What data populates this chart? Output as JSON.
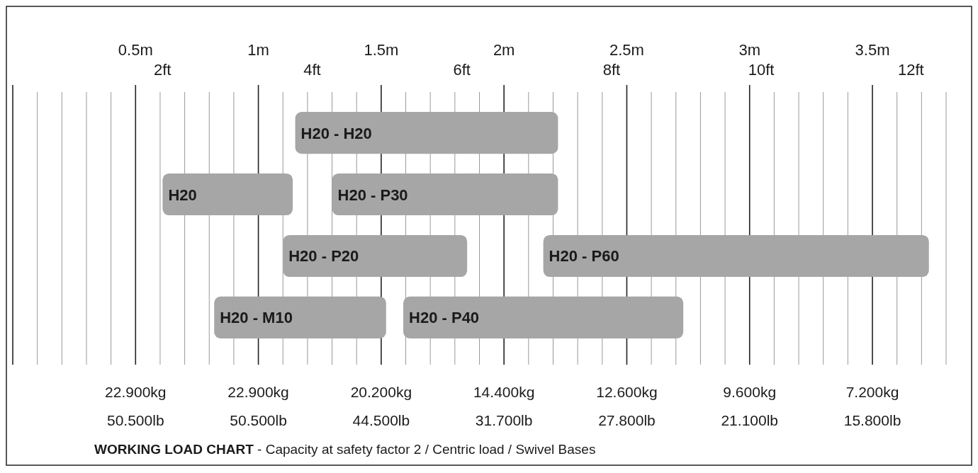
{
  "chart_data": {
    "type": "bar",
    "orientation": "horizontal",
    "title": "WORKING LOAD CHART",
    "subtitle": "- Capacity at safety factor 2 / Centric load / Swivel Bases",
    "categories": [
      null,
      null,
      null,
      null
    ],
    "series": [
      {
        "color": "#a6a6a6",
        "base": [
          1.15,
          0.61,
          1.1,
          0.82
        ],
        "values": [
          1.07,
          0.53,
          0.75,
          0.7
        ],
        "value_labels": [
          "H20 - H20",
          "H20",
          "H20 - P20",
          "H20 - M10"
        ]
      },
      {
        "color": "#a6a6a6",
        "base": [
          null,
          1.3,
          2.16,
          1.59
        ],
        "values": [
          null,
          0.92,
          1.57,
          1.14
        ],
        "value_labels": [
          null,
          "H20 - P30",
          "H20 - P60",
          "H20 - P40"
        ]
      }
    ],
    "xlim": [
      0,
      3.8
    ],
    "xticks": [
      {
        "value": 0,
        "label": null
      },
      {
        "value": 0.1,
        "label": null
      },
      {
        "value": 0.2,
        "label": null
      },
      {
        "value": 0.3,
        "label": null
      },
      {
        "value": 0.4,
        "label": null
      },
      {
        "value": 0.5,
        "label": "0.5m"
      },
      {
        "value": 0.6,
        "label": null
      },
      {
        "value": 0.7,
        "label": null
      },
      {
        "value": 0.8,
        "label": null
      },
      {
        "value": 0.9,
        "label": null
      },
      {
        "value": 1,
        "label": "1m"
      },
      {
        "value": 1.1,
        "label": null
      },
      {
        "value": 1.2,
        "label": null
      },
      {
        "value": 1.3,
        "label": null
      },
      {
        "value": 1.4,
        "label": null
      },
      {
        "value": 1.5,
        "label": "1.5m"
      },
      {
        "value": 1.6,
        "label": null
      },
      {
        "value": 1.7,
        "label": null
      },
      {
        "value": 1.8,
        "label": null
      },
      {
        "value": 1.9,
        "label": null
      },
      {
        "value": 2,
        "label": "2m"
      },
      {
        "value": 2.1,
        "label": null
      },
      {
        "value": 2.2,
        "label": null
      },
      {
        "value": 2.3,
        "label": null
      },
      {
        "value": 2.4,
        "label": null
      },
      {
        "value": 2.5,
        "label": "2.5m"
      },
      {
        "value": 2.6,
        "label": null
      },
      {
        "value": 2.7,
        "label": null
      },
      {
        "value": 2.8,
        "label": null
      },
      {
        "value": 2.9,
        "label": null
      },
      {
        "value": 3,
        "label": "3m"
      },
      {
        "value": 3.1,
        "label": null
      },
      {
        "value": 3.2,
        "label": null
      },
      {
        "value": 3.3,
        "label": null
      },
      {
        "value": 3.4,
        "label": null
      },
      {
        "value": 3.5,
        "label": "3.5m"
      },
      {
        "value": 3.6,
        "label": null
      },
      {
        "value": 3.7,
        "label": null
      },
      {
        "value": 3.8,
        "label": null
      }
    ],
    "x2lim": [
      0,
      12.47
    ],
    "x2ticks": [
      {
        "value": 2,
        "label": "2ft"
      },
      {
        "value": 4,
        "label": "4ft"
      },
      {
        "value": 6,
        "label": "6ft"
      },
      {
        "value": 8,
        "label": "8ft"
      },
      {
        "value": 10,
        "label": "10ft"
      },
      {
        "value": 12,
        "label": "12ft"
      }
    ],
    "grid": true,
    "annotations": [
      "22.900kg",
      "22.900kg",
      "20.200kg",
      "14.400kg",
      "12.600kg",
      "9.600kg",
      "7.200kg",
      "50.500lb",
      "50.500lb",
      "44.500lb",
      "31.700lb",
      "27.800lb",
      "21.100lb",
      "15.800lb"
    ]
  }
}
